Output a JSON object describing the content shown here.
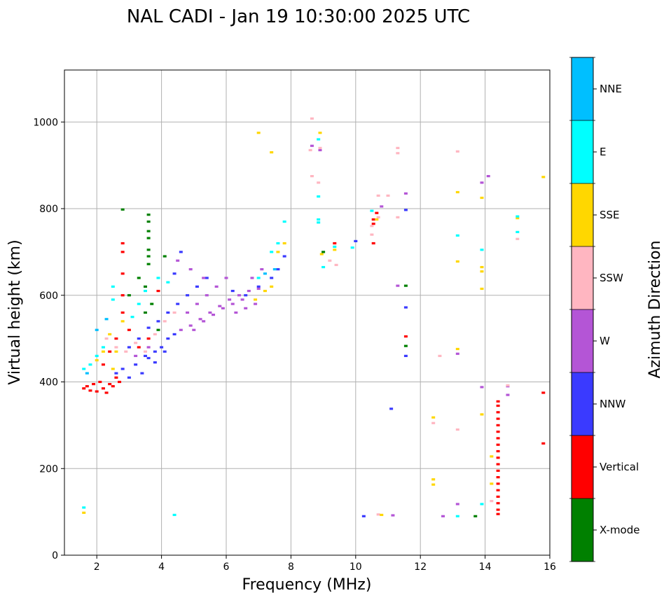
{
  "chart_data": {
    "type": "scatter",
    "title": "NAL CADI - Jan 19 10:30:00 2025 UTC",
    "xlabel": "Frequency (MHz)",
    "ylabel": "Virtual height (km)",
    "xlim": [
      1,
      16
    ],
    "ylim": [
      0,
      1120
    ],
    "xticks": [
      2,
      4,
      6,
      8,
      10,
      12,
      14,
      16
    ],
    "yticks": [
      0,
      200,
      400,
      600,
      800,
      1000
    ],
    "grid": true,
    "colorbar": {
      "label": "Azimuth Direction",
      "categories": [
        {
          "name": "X-mode",
          "color": "#008000"
        },
        {
          "name": "Vertical",
          "color": "#ff0000"
        },
        {
          "name": "NNW",
          "color": "#3a3aff"
        },
        {
          "name": "W",
          "color": "#b455d6"
        },
        {
          "name": "SSW",
          "color": "#ffb6c1"
        },
        {
          "name": "SSE",
          "color": "#ffd700"
        },
        {
          "name": "E",
          "color": "#00ffff"
        },
        {
          "name": "NNE",
          "color": "#00bfff"
        }
      ]
    },
    "series": [
      {
        "name": "Vertical",
        "points": [
          [
            1.6,
            385
          ],
          [
            1.7,
            390
          ],
          [
            1.8,
            380
          ],
          [
            1.9,
            395
          ],
          [
            2.0,
            378
          ],
          [
            2.1,
            400
          ],
          [
            2.2,
            385
          ],
          [
            2.3,
            375
          ],
          [
            2.4,
            395
          ],
          [
            2.5,
            390
          ],
          [
            2.6,
            410
          ],
          [
            2.7,
            400
          ],
          [
            2.2,
            440
          ],
          [
            2.4,
            470
          ],
          [
            2.6,
            500
          ],
          [
            2.8,
            560
          ],
          [
            2.8,
            600
          ],
          [
            2.8,
            650
          ],
          [
            2.8,
            700
          ],
          [
            2.8,
            720
          ],
          [
            3.0,
            520
          ],
          [
            3.3,
            480
          ],
          [
            3.6,
            500
          ],
          [
            3.9,
            610
          ],
          [
            10.55,
            720
          ],
          [
            10.55,
            765
          ],
          [
            10.55,
            775
          ],
          [
            10.65,
            790
          ],
          [
            11.55,
            505
          ],
          [
            15.8,
            375
          ],
          [
            15.8,
            258
          ],
          [
            14.4,
            355
          ],
          [
            14.4,
            330
          ],
          [
            14.4,
            300
          ],
          [
            14.4,
            270
          ],
          [
            14.4,
            240
          ],
          [
            14.4,
            210
          ],
          [
            14.4,
            180
          ],
          [
            14.4,
            150
          ],
          [
            14.4,
            120
          ],
          [
            14.4,
            95
          ],
          [
            14.4,
            345
          ],
          [
            14.4,
            315
          ],
          [
            14.4,
            285
          ],
          [
            14.4,
            255
          ],
          [
            14.4,
            225
          ],
          [
            14.4,
            195
          ],
          [
            14.4,
            165
          ],
          [
            14.4,
            135
          ],
          [
            14.4,
            105
          ],
          [
            9.35,
            720
          ]
        ]
      },
      {
        "name": "NNW",
        "points": [
          [
            2.6,
            420
          ],
          [
            2.8,
            430
          ],
          [
            3.0,
            410
          ],
          [
            3.2,
            440
          ],
          [
            3.4,
            420
          ],
          [
            3.6,
            455
          ],
          [
            3.8,
            470
          ],
          [
            4.0,
            480
          ],
          [
            4.2,
            500
          ],
          [
            4.4,
            510
          ],
          [
            3.0,
            480
          ],
          [
            3.3,
            500
          ],
          [
            3.6,
            525
          ],
          [
            3.9,
            540
          ],
          [
            4.2,
            560
          ],
          [
            4.5,
            580
          ],
          [
            4.8,
            600
          ],
          [
            5.1,
            620
          ],
          [
            5.4,
            640
          ],
          [
            3.5,
            460
          ],
          [
            3.8,
            445
          ],
          [
            4.1,
            470
          ],
          [
            4.4,
            650
          ],
          [
            4.6,
            700
          ],
          [
            6.2,
            610
          ],
          [
            6.6,
            600
          ],
          [
            7.0,
            620
          ],
          [
            7.4,
            640
          ],
          [
            7.6,
            660
          ],
          [
            7.8,
            690
          ],
          [
            10.0,
            725
          ],
          [
            10.25,
            90
          ],
          [
            11.1,
            338
          ],
          [
            11.55,
            460
          ],
          [
            11.55,
            572
          ],
          [
            11.55,
            797
          ]
        ]
      },
      {
        "name": "W",
        "points": [
          [
            4.6,
            520
          ],
          [
            4.9,
            530
          ],
          [
            5.2,
            545
          ],
          [
            5.5,
            560
          ],
          [
            5.8,
            575
          ],
          [
            6.1,
            590
          ],
          [
            6.4,
            600
          ],
          [
            6.7,
            610
          ],
          [
            7.0,
            615
          ],
          [
            4.8,
            560
          ],
          [
            5.1,
            580
          ],
          [
            5.4,
            600
          ],
          [
            5.7,
            620
          ],
          [
            6.0,
            640
          ],
          [
            6.3,
            560
          ],
          [
            6.6,
            570
          ],
          [
            6.9,
            580
          ],
          [
            5.0,
            520
          ],
          [
            5.3,
            540
          ],
          [
            5.6,
            555
          ],
          [
            5.9,
            570
          ],
          [
            6.2,
            580
          ],
          [
            6.5,
            590
          ],
          [
            6.8,
            640
          ],
          [
            7.1,
            660
          ],
          [
            4.5,
            680
          ],
          [
            4.9,
            660
          ],
          [
            5.3,
            640
          ],
          [
            10.8,
            805
          ],
          [
            11.15,
            92
          ],
          [
            11.55,
            835
          ],
          [
            12.7,
            90
          ],
          [
            13.15,
            118
          ],
          [
            13.15,
            465
          ],
          [
            13.9,
            388
          ],
          [
            13.9,
            860
          ],
          [
            14.1,
            875
          ],
          [
            14.7,
            390
          ],
          [
            14.7,
            370
          ],
          [
            8.65,
            945
          ],
          [
            8.9,
            935
          ],
          [
            11.3,
            622
          ],
          [
            3.2,
            460
          ],
          [
            3.6,
            480
          ]
        ]
      },
      {
        "name": "SSW",
        "points": [
          [
            2.3,
            500
          ],
          [
            2.6,
            480
          ],
          [
            2.9,
            470
          ],
          [
            3.2,
            490
          ],
          [
            3.5,
            470
          ],
          [
            3.8,
            510
          ],
          [
            4.1,
            540
          ],
          [
            4.4,
            560
          ],
          [
            8.65,
            1008
          ],
          [
            8.65,
            875
          ],
          [
            8.85,
            860
          ],
          [
            8.6,
            935
          ],
          [
            8.9,
            940
          ],
          [
            9.2,
            680
          ],
          [
            9.4,
            670
          ],
          [
            10.5,
            760
          ],
          [
            10.7,
            830
          ],
          [
            10.7,
            780
          ],
          [
            10.5,
            740
          ],
          [
            11.0,
            830
          ],
          [
            11.3,
            940
          ],
          [
            11.3,
            928
          ],
          [
            11.3,
            780
          ],
          [
            12.4,
            305
          ],
          [
            12.6,
            460
          ],
          [
            13.15,
            290
          ],
          [
            13.15,
            932
          ],
          [
            14.2,
            125
          ],
          [
            15.0,
            730
          ],
          [
            10.7,
            94
          ],
          [
            14.7,
            392
          ]
        ]
      },
      {
        "name": "SSE",
        "points": [
          [
            2.0,
            450
          ],
          [
            2.2,
            470
          ],
          [
            2.4,
            510
          ],
          [
            2.6,
            470
          ],
          [
            2.5,
            430
          ],
          [
            2.8,
            540
          ],
          [
            6.9,
            590
          ],
          [
            7.2,
            610
          ],
          [
            7.4,
            620
          ],
          [
            7.6,
            700
          ],
          [
            7.8,
            720
          ],
          [
            7.4,
            930
          ],
          [
            7.0,
            975
          ],
          [
            8.9,
            975
          ],
          [
            8.95,
            695
          ],
          [
            9.35,
            705
          ],
          [
            10.65,
            775
          ],
          [
            10.8,
            93
          ],
          [
            12.4,
            318
          ],
          [
            12.4,
            175
          ],
          [
            12.4,
            163
          ],
          [
            13.15,
            838
          ],
          [
            13.15,
            678
          ],
          [
            13.15,
            476
          ],
          [
            13.9,
            825
          ],
          [
            13.9,
            665
          ],
          [
            13.9,
            655
          ],
          [
            13.9,
            615
          ],
          [
            13.9,
            325
          ],
          [
            14.2,
            228
          ],
          [
            14.2,
            165
          ],
          [
            15.0,
            778
          ],
          [
            15.8,
            873
          ],
          [
            1.6,
            98
          ]
        ]
      },
      {
        "name": "E",
        "points": [
          [
            1.6,
            430
          ],
          [
            1.8,
            440
          ],
          [
            2.0,
            460
          ],
          [
            2.2,
            480
          ],
          [
            2.5,
            590
          ],
          [
            2.5,
            620
          ],
          [
            3.1,
            550
          ],
          [
            3.3,
            580
          ],
          [
            3.5,
            610
          ],
          [
            3.9,
            640
          ],
          [
            4.2,
            630
          ],
          [
            7.0,
            640
          ],
          [
            7.4,
            700
          ],
          [
            7.6,
            720
          ],
          [
            7.8,
            770
          ],
          [
            8.85,
            960
          ],
          [
            8.85,
            828
          ],
          [
            8.85,
            775
          ],
          [
            8.85,
            768
          ],
          [
            9.0,
            665
          ],
          [
            9.9,
            710
          ],
          [
            10.5,
            795
          ],
          [
            13.15,
            738
          ],
          [
            13.15,
            90
          ],
          [
            13.9,
            705
          ],
          [
            13.9,
            118
          ],
          [
            15.0,
            782
          ],
          [
            15.0,
            746
          ],
          [
            1.6,
            110
          ],
          [
            4.4,
            93
          ],
          [
            9.35,
            712
          ]
        ]
      },
      {
        "name": "NNE",
        "points": [
          [
            1.7,
            420
          ],
          [
            2.0,
            520
          ],
          [
            2.3,
            545
          ],
          [
            7.2,
            650
          ],
          [
            7.5,
            660
          ]
        ]
      },
      {
        "name": "X-mode",
        "points": [
          [
            2.8,
            798
          ],
          [
            3.0,
            600
          ],
          [
            3.3,
            640
          ],
          [
            3.5,
            620
          ],
          [
            3.6,
            786
          ],
          [
            3.6,
            770
          ],
          [
            3.6,
            748
          ],
          [
            3.6,
            732
          ],
          [
            3.6,
            705
          ],
          [
            3.6,
            690
          ],
          [
            3.6,
            672
          ],
          [
            3.7,
            580
          ],
          [
            3.5,
            560
          ],
          [
            3.9,
            520
          ],
          [
            4.1,
            690
          ],
          [
            9.0,
            700
          ],
          [
            11.55,
            622
          ],
          [
            11.55,
            483
          ],
          [
            13.7,
            90
          ]
        ]
      }
    ]
  }
}
